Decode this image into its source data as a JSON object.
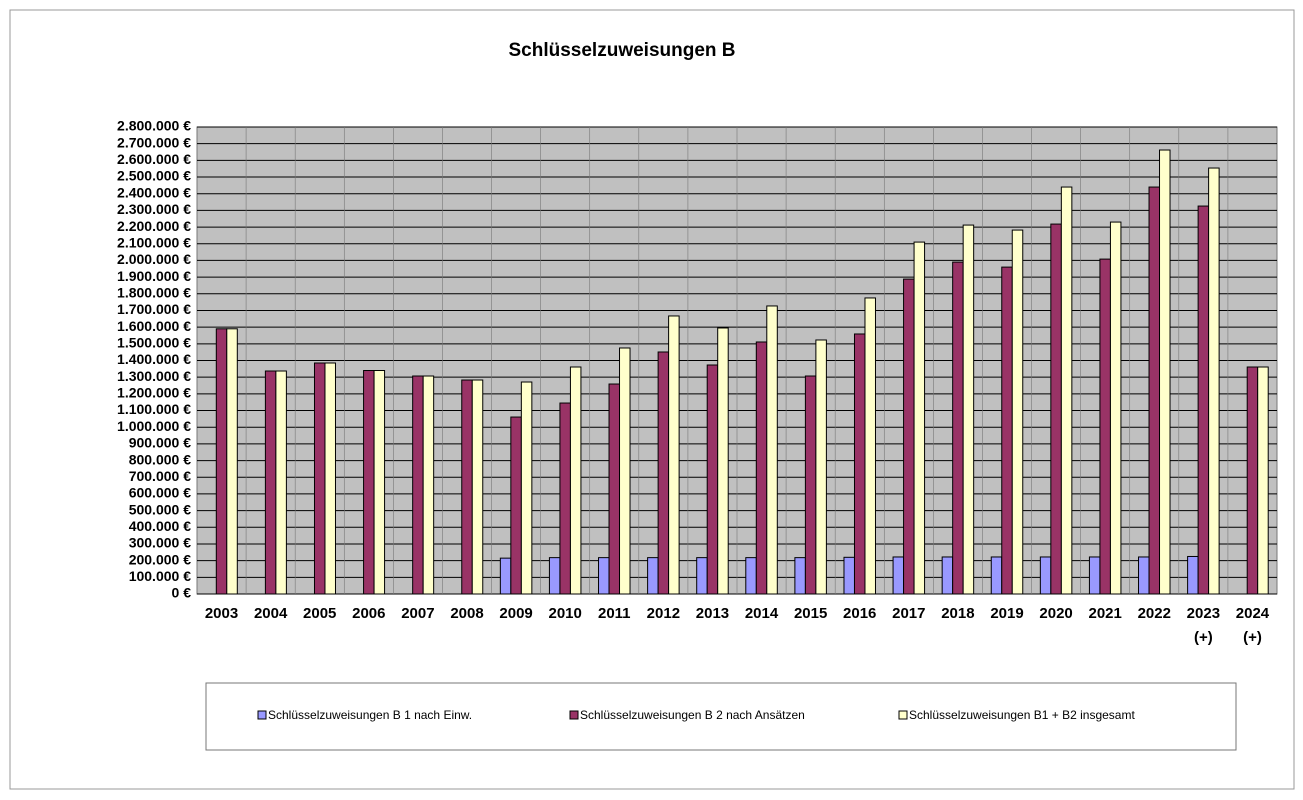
{
  "chart_data": {
    "type": "bar",
    "title": "Schlüsselzuweisungen B",
    "categories": [
      "2003",
      "2004",
      "2005",
      "2006",
      "2007",
      "2008",
      "2009",
      "2010",
      "2011",
      "2012",
      "2013",
      "2014",
      "2015",
      "2016",
      "2017",
      "2018",
      "2019",
      "2020",
      "2021",
      "2022",
      "2023\n(+)",
      "2024\n(+)"
    ],
    "series": [
      {
        "name": "Schlüsselzuweisungen B 1 nach Einw.",
        "color": "#9999ff",
        "values": [
          null,
          null,
          null,
          null,
          null,
          null,
          215000,
          218000,
          218000,
          218000,
          218000,
          218000,
          218000,
          220000,
          222000,
          222000,
          222000,
          222000,
          222000,
          222000,
          225000,
          null
        ]
      },
      {
        "name": "Schlüsselzuweisungen B 2 nach Ansätzen",
        "color": "#993366",
        "values": [
          1590000,
          1337000,
          1385000,
          1340000,
          1307000,
          1283000,
          1061000,
          1145000,
          1259000,
          1451000,
          1373000,
          1511000,
          1307000,
          1559000,
          1888000,
          1990000,
          1960000,
          2218000,
          2008000,
          2440000,
          2326000,
          1361000
        ]
      },
      {
        "name": "Schlüsselzuweisungen B1 + B2 insgesamt",
        "color": "#ffffcc",
        "values": [
          1590000,
          1337000,
          1385000,
          1340000,
          1307000,
          1283000,
          1271000,
          1361000,
          1475000,
          1667000,
          1595000,
          1727000,
          1523000,
          1775000,
          2110000,
          2212000,
          2182000,
          2440000,
          2230000,
          2662000,
          2554000,
          1361000
        ]
      }
    ],
    "ylim": [
      0,
      2800000
    ],
    "yticks": [
      {
        "value": 0,
        "label": "0 €"
      },
      {
        "value": 100000,
        "label": "100.000 €"
      },
      {
        "value": 200000,
        "label": "200.000 €"
      },
      {
        "value": 300000,
        "label": "300.000 €"
      },
      {
        "value": 400000,
        "label": "400.000 €"
      },
      {
        "value": 500000,
        "label": "500.000 €"
      },
      {
        "value": 600000,
        "label": "600.000 €"
      },
      {
        "value": 700000,
        "label": "700.000 €"
      },
      {
        "value": 800000,
        "label": "800.000 €"
      },
      {
        "value": 900000,
        "label": "900.000 €"
      },
      {
        "value": 1000000,
        "label": "1.000.000 €"
      },
      {
        "value": 1100000,
        "label": "1.100.000 €"
      },
      {
        "value": 1200000,
        "label": "1.200.000 €"
      },
      {
        "value": 1300000,
        "label": "1.300.000 €"
      },
      {
        "value": 1400000,
        "label": "1.400.000 €"
      },
      {
        "value": 1500000,
        "label": "1.500.000 €"
      },
      {
        "value": 1600000,
        "label": "1.600.000 €"
      },
      {
        "value": 1700000,
        "label": "1.700.000 €"
      },
      {
        "value": 1800000,
        "label": "1.800.000 €"
      },
      {
        "value": 1900000,
        "label": "1.900.000 €"
      },
      {
        "value": 2000000,
        "label": "2.000.000 €"
      },
      {
        "value": 2100000,
        "label": "2.100.000 €"
      },
      {
        "value": 2200000,
        "label": "2.200.000 €"
      },
      {
        "value": 2300000,
        "label": "2.300.000 €"
      },
      {
        "value": 2400000,
        "label": "2.400.000 €"
      },
      {
        "value": 2500000,
        "label": "2.500.000 €"
      },
      {
        "value": 2600000,
        "label": "2.600.000 €"
      },
      {
        "value": 2700000,
        "label": "2.700.000 €"
      },
      {
        "value": 2800000,
        "label": "2.800.000 €"
      }
    ],
    "grid": true
  }
}
